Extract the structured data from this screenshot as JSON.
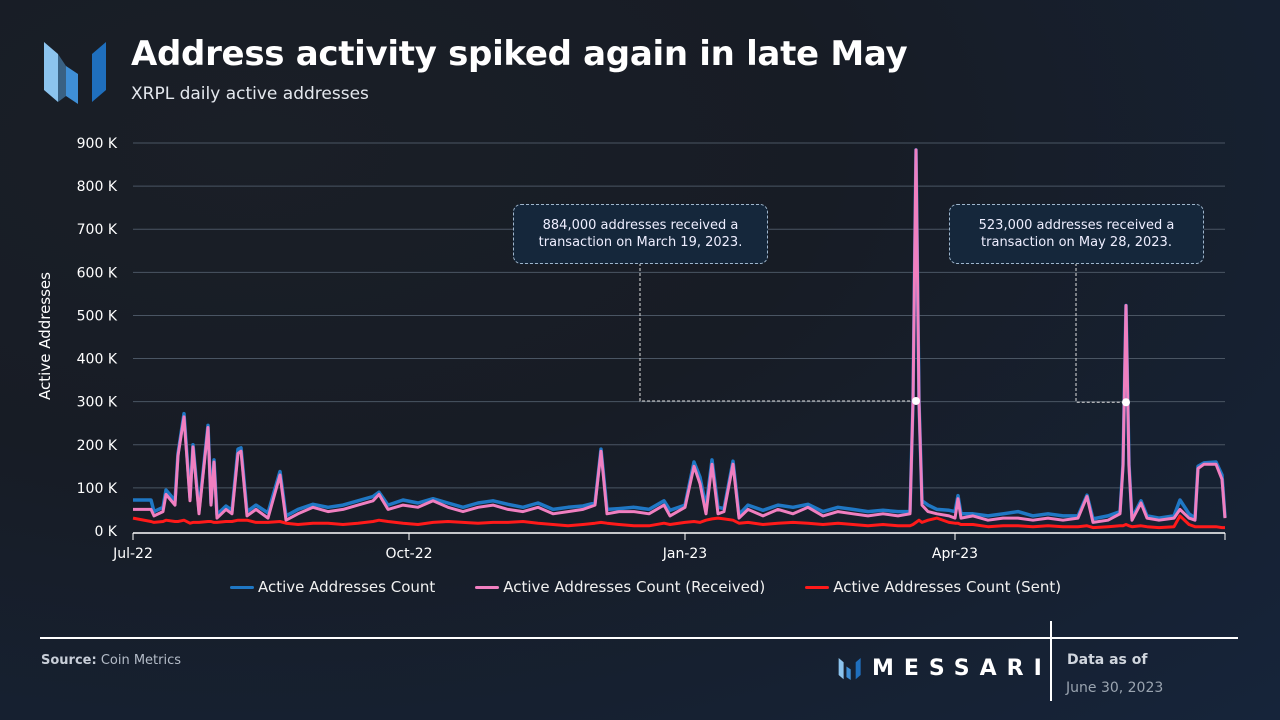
{
  "header": {
    "title": "Address activity spiked again in late May",
    "subtitle": "XRPL daily active addresses"
  },
  "footer": {
    "source_label": "Source:",
    "source_value": "Coin Metrics",
    "brand": "MESSARI",
    "data_as_of_label": "Data as of",
    "data_as_of_date": "June 30, 2023"
  },
  "colors": {
    "total": "#1f77c4",
    "received": "#f07fc0",
    "sent": "#ff1a1a",
    "grid": "#4a5563"
  },
  "chart_data": {
    "type": "line",
    "title": "Address activity spiked again in late May",
    "subtitle": "XRPL daily active addresses",
    "xlabel": "",
    "ylabel": "Active Addresses",
    "x_unit": "days since 2022-07-01",
    "xlim": [
      0,
      364
    ],
    "ylim": [
      0,
      900
    ],
    "y_unit": "thousands",
    "yticks": [
      0,
      100,
      200,
      300,
      400,
      500,
      600,
      700,
      800,
      900
    ],
    "ytick_labels": [
      "0 K",
      "100 K",
      "200 K",
      "300 K",
      "400 K",
      "500 K",
      "600 K",
      "700 K",
      "800 K",
      "900 K"
    ],
    "xticks": [
      0,
      92,
      184,
      274
    ],
    "xtick_labels": [
      "Jul-22",
      "Oct-22",
      "Jan-23",
      "Apr-23"
    ],
    "grid": true,
    "legend_position": "bottom",
    "x": [
      0,
      6,
      7,
      10,
      11,
      14,
      15,
      17,
      19,
      20,
      22,
      25,
      26,
      27,
      28,
      31,
      33,
      35,
      36,
      38,
      41,
      45,
      49,
      51,
      55,
      60,
      65,
      70,
      75,
      80,
      82,
      85,
      90,
      95,
      100,
      105,
      110,
      115,
      120,
      125,
      130,
      135,
      140,
      145,
      150,
      154,
      156,
      158,
      162,
      167,
      172,
      177,
      179,
      184,
      187,
      189,
      191,
      193,
      195,
      197,
      200,
      202,
      205,
      210,
      215,
      220,
      225,
      230,
      235,
      240,
      245,
      250,
      255,
      259,
      260,
      261,
      262,
      263,
      265,
      268,
      272,
      274,
      275,
      276,
      280,
      285,
      290,
      295,
      300,
      305,
      310,
      315,
      318,
      320,
      325,
      329,
      330,
      331,
      332,
      333,
      336,
      338,
      342,
      347,
      349,
      352,
      354,
      355,
      357,
      361,
      363,
      364
    ],
    "series": [
      {
        "name": "Active Addresses Count",
        "key": "total",
        "values": [
          72,
          72,
          45,
          55,
          95,
          70,
          180,
          272,
          78,
          200,
          48,
          245,
          65,
          165,
          38,
          58,
          48,
          190,
          193,
          45,
          60,
          42,
          138,
          35,
          50,
          62,
          55,
          60,
          70,
          80,
          90,
          60,
          72,
          65,
          75,
          65,
          55,
          65,
          70,
          62,
          55,
          65,
          50,
          55,
          58,
          65,
          190,
          50,
          52,
          55,
          50,
          70,
          48,
          60,
          160,
          125,
          55,
          165,
          55,
          52,
          162,
          38,
          60,
          48,
          60,
          55,
          62,
          45,
          55,
          50,
          45,
          48,
          45,
          45,
          300,
          884,
          300,
          70,
          60,
          50,
          48,
          45,
          82,
          40,
          40,
          35,
          40,
          45,
          35,
          40,
          35,
          35,
          83,
          28,
          35,
          45,
          155,
          523,
          155,
          30,
          70,
          35,
          30,
          35,
          72,
          40,
          30,
          150,
          158,
          160,
          130,
          32
        ]
      },
      {
        "name": "Active Addresses Count (Received)",
        "key": "received",
        "values": [
          50,
          50,
          35,
          45,
          85,
          60,
          175,
          265,
          70,
          195,
          40,
          240,
          60,
          160,
          30,
          50,
          40,
          180,
          185,
          35,
          50,
          30,
          130,
          25,
          40,
          55,
          45,
          50,
          60,
          70,
          85,
          50,
          60,
          55,
          70,
          55,
          45,
          55,
          60,
          50,
          45,
          55,
          40,
          45,
          50,
          60,
          185,
          40,
          45,
          45,
          40,
          60,
          35,
          55,
          150,
          110,
          40,
          155,
          40,
          45,
          155,
          30,
          50,
          35,
          50,
          40,
          55,
          35,
          45,
          40,
          35,
          40,
          35,
          40,
          300,
          884,
          300,
          60,
          45,
          40,
          35,
          30,
          75,
          30,
          35,
          25,
          30,
          30,
          25,
          30,
          25,
          30,
          80,
          20,
          25,
          40,
          150,
          523,
          150,
          25,
          65,
          30,
          25,
          30,
          50,
          30,
          25,
          145,
          155,
          155,
          120,
          30
        ]
      },
      {
        "name": "Active Addresses Count (Sent)",
        "key": "sent",
        "values": [
          30,
          22,
          20,
          22,
          25,
          22,
          22,
          25,
          18,
          20,
          20,
          22,
          22,
          20,
          20,
          22,
          22,
          25,
          25,
          25,
          20,
          20,
          22,
          18,
          15,
          18,
          18,
          15,
          18,
          22,
          25,
          22,
          18,
          15,
          20,
          22,
          20,
          18,
          20,
          20,
          22,
          18,
          15,
          12,
          15,
          18,
          20,
          18,
          15,
          12,
          12,
          18,
          15,
          20,
          22,
          20,
          25,
          28,
          30,
          28,
          25,
          18,
          20,
          15,
          18,
          20,
          18,
          15,
          18,
          15,
          12,
          15,
          12,
          12,
          15,
          20,
          25,
          20,
          25,
          30,
          20,
          18,
          18,
          15,
          15,
          10,
          12,
          12,
          10,
          12,
          10,
          10,
          12,
          8,
          10,
          12,
          12,
          15,
          12,
          10,
          12,
          10,
          8,
          10,
          35,
          15,
          10,
          10,
          10,
          10,
          8,
          8
        ]
      }
    ],
    "annotations": [
      {
        "text": "884,000 addresses received a transaction on March 19, 2023.",
        "x": 261,
        "y": 884
      },
      {
        "text": "523,000 addresses received a transaction on May 28, 2023.",
        "x": 331,
        "y": 523
      }
    ]
  }
}
